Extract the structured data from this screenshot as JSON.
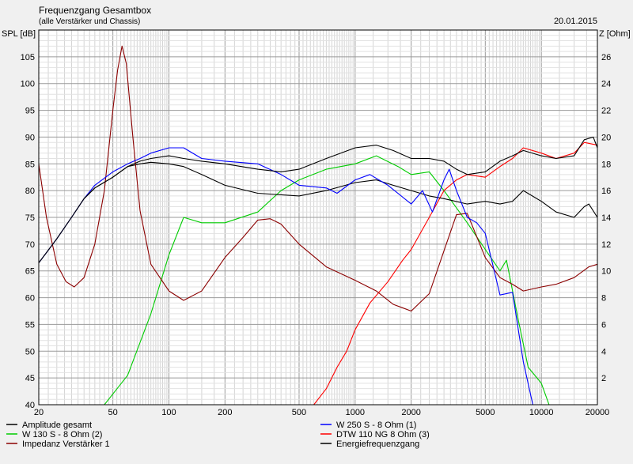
{
  "header": {
    "title": "Frequenzgang Gesamtbox",
    "subtitle": "(alle Verstärker und Chassis)",
    "date": "20.01.2015"
  },
  "chart_data": {
    "type": "line",
    "title": "Frequenzgang Gesamtbox",
    "subtitle": "(alle Verstärker und Chassis)",
    "ylabel_left": "SPL [dB]",
    "ylabel_right": "Z [Ohm]",
    "x_scale": "log",
    "xlim": [
      20,
      20000
    ],
    "ylim_left": [
      40,
      110
    ],
    "ylim_right": [
      0,
      28
    ],
    "x_ticks": [
      20,
      50,
      100,
      200,
      500,
      1000,
      2000,
      5000,
      10000,
      20000
    ],
    "x_tick_labels": [
      "20",
      "50",
      "100",
      "200",
      "500",
      "1000",
      "2000",
      "5000",
      "10000",
      "20000"
    ],
    "y_ticks_left": [
      40,
      45,
      50,
      55,
      60,
      65,
      70,
      75,
      80,
      85,
      90,
      95,
      100,
      105
    ],
    "y_ticks_right": [
      2,
      4,
      6,
      8,
      10,
      12,
      14,
      16,
      18,
      20,
      22,
      24,
      26
    ],
    "grid": true,
    "legend_position": "bottom",
    "series": [
      {
        "name": "Amplitude gesamt",
        "axis": "left",
        "color": "#000000",
        "points": [
          [
            20,
            66.5
          ],
          [
            25,
            71
          ],
          [
            30,
            75
          ],
          [
            35,
            78.5
          ],
          [
            40,
            80.5
          ],
          [
            50,
            82.5
          ],
          [
            60,
            84.5
          ],
          [
            70,
            85.5
          ],
          [
            80,
            86
          ],
          [
            100,
            86.5
          ],
          [
            120,
            86
          ],
          [
            150,
            85.5
          ],
          [
            200,
            85
          ],
          [
            300,
            84
          ],
          [
            400,
            83.5
          ],
          [
            500,
            84
          ],
          [
            700,
            86
          ],
          [
            1000,
            88
          ],
          [
            1300,
            88.5
          ],
          [
            1600,
            87.5
          ],
          [
            2000,
            86
          ],
          [
            2500,
            86
          ],
          [
            3000,
            85.5
          ],
          [
            3500,
            84
          ],
          [
            4000,
            83
          ],
          [
            5000,
            83.5
          ],
          [
            6000,
            85.5
          ],
          [
            7000,
            86.5
          ],
          [
            8000,
            87.5
          ],
          [
            10000,
            86.5
          ],
          [
            12000,
            86
          ],
          [
            15000,
            86.5
          ],
          [
            17000,
            89.5
          ],
          [
            19000,
            90
          ],
          [
            20000,
            88
          ]
        ]
      },
      {
        "name": "W 250 S - 8 Ohm  (1)",
        "axis": "left",
        "color": "#0000ff",
        "points": [
          [
            20,
            66.5
          ],
          [
            25,
            71
          ],
          [
            30,
            75
          ],
          [
            35,
            78.5
          ],
          [
            40,
            81
          ],
          [
            50,
            83.5
          ],
          [
            60,
            85
          ],
          [
            70,
            86
          ],
          [
            80,
            87
          ],
          [
            100,
            88
          ],
          [
            120,
            88
          ],
          [
            150,
            86
          ],
          [
            200,
            85.5
          ],
          [
            300,
            85
          ],
          [
            400,
            83
          ],
          [
            500,
            81
          ],
          [
            700,
            80.5
          ],
          [
            800,
            79.5
          ],
          [
            1000,
            82
          ],
          [
            1200,
            83
          ],
          [
            1500,
            81
          ],
          [
            2000,
            77.5
          ],
          [
            2300,
            80
          ],
          [
            2600,
            76
          ],
          [
            3000,
            82
          ],
          [
            3200,
            84
          ],
          [
            3500,
            80
          ],
          [
            4000,
            75
          ],
          [
            4500,
            74
          ],
          [
            5000,
            72
          ],
          [
            6000,
            60.5
          ],
          [
            7000,
            61
          ],
          [
            8000,
            48
          ],
          [
            9000,
            40
          ],
          [
            20000,
            40
          ]
        ]
      },
      {
        "name": "W 130 S - 8 Ohm (2)",
        "axis": "left",
        "color": "#00cc00",
        "points": [
          [
            20,
            40
          ],
          [
            45,
            40
          ],
          [
            60,
            45.5
          ],
          [
            80,
            57
          ],
          [
            100,
            68
          ],
          [
            120,
            75
          ],
          [
            150,
            74
          ],
          [
            200,
            74
          ],
          [
            300,
            76
          ],
          [
            400,
            80
          ],
          [
            500,
            82
          ],
          [
            700,
            84
          ],
          [
            1000,
            85
          ],
          [
            1300,
            86.5
          ],
          [
            1700,
            84.5
          ],
          [
            2000,
            83
          ],
          [
            2500,
            83.5
          ],
          [
            3000,
            80
          ],
          [
            4000,
            74
          ],
          [
            5000,
            69
          ],
          [
            6000,
            65
          ],
          [
            6500,
            67
          ],
          [
            7500,
            56
          ],
          [
            8500,
            47
          ],
          [
            10000,
            44
          ],
          [
            11000,
            40
          ],
          [
            20000,
            40
          ]
        ]
      },
      {
        "name": "DTW 110 NG 8 Ohm (3)",
        "axis": "left",
        "color": "#ff0000",
        "points": [
          [
            20,
            40
          ],
          [
            600,
            40
          ],
          [
            700,
            43
          ],
          [
            800,
            47
          ],
          [
            900,
            50
          ],
          [
            1000,
            54
          ],
          [
            1200,
            59
          ],
          [
            1500,
            63
          ],
          [
            1800,
            67
          ],
          [
            2000,
            69
          ],
          [
            2500,
            75
          ],
          [
            3000,
            80
          ],
          [
            3500,
            82
          ],
          [
            4000,
            83
          ],
          [
            5000,
            82.5
          ],
          [
            6000,
            84.5
          ],
          [
            7000,
            86
          ],
          [
            8000,
            88
          ],
          [
            10000,
            87
          ],
          [
            12000,
            86
          ],
          [
            15000,
            87
          ],
          [
            17000,
            89
          ],
          [
            20000,
            88.5
          ]
        ]
      },
      {
        "name": "Impedanz Verstärker 1",
        "axis": "right",
        "color": "#8b0000",
        "points": [
          [
            20,
            18
          ],
          [
            22,
            14
          ],
          [
            25,
            10.5
          ],
          [
            28,
            9.2
          ],
          [
            31,
            8.8
          ],
          [
            35,
            9.5
          ],
          [
            40,
            12
          ],
          [
            45,
            16
          ],
          [
            50,
            22
          ],
          [
            53,
            25
          ],
          [
            56,
            26.8
          ],
          [
            59,
            25.5
          ],
          [
            64,
            20
          ],
          [
            70,
            14.5
          ],
          [
            80,
            10.5
          ],
          [
            100,
            8.5
          ],
          [
            120,
            7.8
          ],
          [
            150,
            8.5
          ],
          [
            200,
            11
          ],
          [
            250,
            12.5
          ],
          [
            300,
            13.8
          ],
          [
            350,
            13.9
          ],
          [
            400,
            13.5
          ],
          [
            500,
            12
          ],
          [
            700,
            10.3
          ],
          [
            1000,
            9.3
          ],
          [
            1300,
            8.5
          ],
          [
            1600,
            7.5
          ],
          [
            2000,
            7
          ],
          [
            2500,
            8.3
          ],
          [
            3000,
            11.5
          ],
          [
            3500,
            14.2
          ],
          [
            4000,
            14.3
          ],
          [
            5000,
            11
          ],
          [
            6000,
            9.5
          ],
          [
            7000,
            9
          ],
          [
            8000,
            8.5
          ],
          [
            10000,
            8.8
          ],
          [
            12000,
            9
          ],
          [
            15000,
            9.5
          ],
          [
            18000,
            10.3
          ],
          [
            20000,
            10.5
          ]
        ]
      },
      {
        "name": "Energiefrequenzgang",
        "axis": "left",
        "color": "#000000",
        "points": [
          [
            20,
            66.5
          ],
          [
            25,
            71
          ],
          [
            30,
            75
          ],
          [
            35,
            78.5
          ],
          [
            40,
            80.5
          ],
          [
            50,
            82.5
          ],
          [
            60,
            84.5
          ],
          [
            70,
            85
          ],
          [
            80,
            85.3
          ],
          [
            100,
            85
          ],
          [
            120,
            84.5
          ],
          [
            150,
            83
          ],
          [
            200,
            81
          ],
          [
            300,
            79.5
          ],
          [
            500,
            79
          ],
          [
            700,
            80
          ],
          [
            1000,
            81.5
          ],
          [
            1300,
            82
          ],
          [
            1600,
            81
          ],
          [
            2000,
            80
          ],
          [
            2500,
            79
          ],
          [
            3000,
            78.5
          ],
          [
            4000,
            77.5
          ],
          [
            5000,
            78
          ],
          [
            6000,
            77.5
          ],
          [
            7000,
            78
          ],
          [
            8000,
            80
          ],
          [
            10000,
            78
          ],
          [
            12000,
            76
          ],
          [
            15000,
            75
          ],
          [
            17000,
            77
          ],
          [
            18000,
            77.5
          ],
          [
            20000,
            75
          ]
        ]
      }
    ]
  }
}
